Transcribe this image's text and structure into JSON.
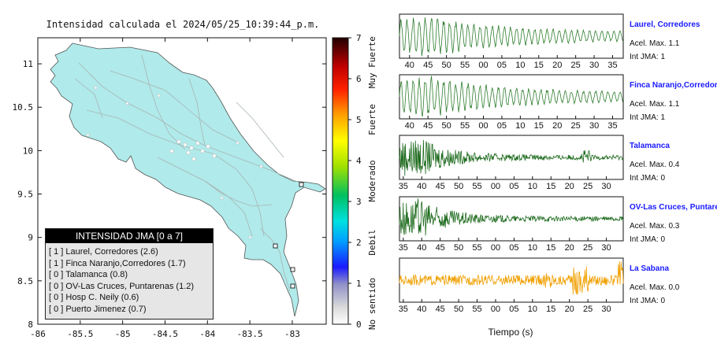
{
  "map": {
    "title": "Intensidad calculada el 2024/05/25_10:39:44_p.m.",
    "x_ticks": [
      "-86",
      "-85.5",
      "-85",
      "-84.5",
      "-84",
      "-83.5",
      "-83"
    ],
    "y_ticks": [
      "11",
      "10.5",
      "10",
      "9.5",
      "9",
      "8.5",
      "8"
    ]
  },
  "colorbar": {
    "ticks": [
      "0",
      "1",
      "2",
      "3",
      "4",
      "5",
      "6",
      "7"
    ],
    "labels": [
      "No sentido",
      "Debil",
      "Moderado",
      "Fuerte",
      "Muy Fuerte"
    ]
  },
  "legend": {
    "title": "INTENSIDAD JMA [0 a 7]",
    "items": [
      "[ 1 ]  Laurel, Corredores (2.6)",
      "[ 1 ]  Finca Naranjo,Corredores (1.7)",
      "[ 0 ]  Talamanca (0.8)",
      "[ 0 ]  OV-Las Cruces, Puntarenas (1.2)",
      "[ 0 ]  Hosp C. Neily (0.6)",
      "[ 0 ]  Puerto Jimenez (0.7)"
    ]
  },
  "waveforms": {
    "xlabel": "Tiempo (s)",
    "panels": [
      {
        "name": "Laurel, Corredores",
        "accel": "Acel. Max. 1.1",
        "jma": "Int JMA: 1",
        "color": "#2e7d2e",
        "ticks": [
          "40",
          "45",
          "50",
          "55",
          "00",
          "05",
          "10",
          "15",
          "20",
          "25",
          "30",
          "35"
        ]
      },
      {
        "name": "Finca Naranjo,Corredores",
        "accel": "Acel. Max. 1.1",
        "jma": "Int JMA: 1",
        "color": "#2e7d2e",
        "ticks": [
          "40",
          "45",
          "50",
          "55",
          "00",
          "05",
          "10",
          "15",
          "20",
          "25",
          "30",
          "35"
        ]
      },
      {
        "name": "Talamanca",
        "accel": "Acel. Max. 0.4",
        "jma": "Int JMA: 0",
        "color": "#1e6b1e",
        "ticks": [
          "35",
          "40",
          "45",
          "50",
          "55",
          "00",
          "05",
          "10",
          "15",
          "20",
          "25",
          "30"
        ]
      },
      {
        "name": "OV-Las Cruces, Puntarenas",
        "accel": "Acel. Max. 0.3",
        "jma": "Int JMA: 0",
        "color": "#1e6b1e",
        "ticks": [
          "35",
          "40",
          "45",
          "50",
          "55",
          "00",
          "05",
          "10",
          "15",
          "20",
          "25",
          "30"
        ]
      },
      {
        "name": "La Sabana",
        "accel": "Acel. Max. 0.0",
        "jma": "Int JMA: 0",
        "color": "#f0a000",
        "ticks": [
          "35",
          "40",
          "45",
          "50",
          "55",
          "00",
          "05",
          "10",
          "15",
          "20",
          "25",
          "30"
        ]
      }
    ]
  },
  "chart_data": [
    {
      "type": "scatter",
      "title": "Intensidad calculada el 2024/05/25_10:39:44_p.m.",
      "xlabel": "",
      "ylabel": "",
      "xlim": [
        -86,
        -82.6
      ],
      "ylim": [
        8,
        11.3
      ],
      "colorbar": {
        "range": [
          0,
          7
        ],
        "labels": [
          "No sentido",
          "Debil",
          "Moderado",
          "Fuerte",
          "Muy Fuerte"
        ]
      },
      "series": [
        {
          "name": "INTENSIDAD JMA [0 a 7]",
          "points": [
            {
              "label": "Laurel, Corredores",
              "jma": 1,
              "value": 2.6
            },
            {
              "label": "Finca Naranjo,Corredores",
              "jma": 1,
              "value": 1.7
            },
            {
              "label": "Talamanca",
              "jma": 0,
              "value": 0.8
            },
            {
              "label": "OV-Las Cruces, Puntarenas",
              "jma": 0,
              "value": 1.2
            },
            {
              "label": "Hosp C. Neily",
              "jma": 0,
              "value": 0.6
            },
            {
              "label": "Puerto Jimenez",
              "jma": 0,
              "value": 0.7
            }
          ]
        }
      ]
    },
    {
      "type": "line",
      "title": "",
      "xlabel": "Tiempo (s)",
      "ylabel": "",
      "series": [
        {
          "name": "Laurel, Corredores",
          "accel_max": 1.1,
          "int_jma": 1
        },
        {
          "name": "Finca Naranjo,Corredores",
          "accel_max": 1.1,
          "int_jma": 1
        },
        {
          "name": "Talamanca",
          "accel_max": 0.4,
          "int_jma": 0
        },
        {
          "name": "OV-Las Cruces, Puntarenas",
          "accel_max": 0.3,
          "int_jma": 0
        },
        {
          "name": "La Sabana",
          "accel_max": 0.0,
          "int_jma": 0
        }
      ]
    }
  ]
}
